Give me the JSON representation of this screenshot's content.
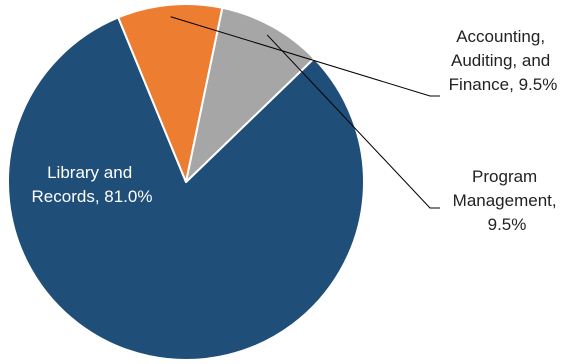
{
  "chart_data": {
    "type": "pie",
    "title": "",
    "slices": [
      {
        "category": "Library and Records",
        "value": 81.0,
        "label_lines": [
          "Library and",
          "Records, 81.0%"
        ],
        "color": "#1f4e79",
        "label_color": "#ffffff"
      },
      {
        "category": "Accounting, Auditing, and Finance",
        "value": 9.5,
        "label_lines": [
          "Accounting,",
          "Auditing, and",
          "Finance, 9.5%"
        ],
        "color": "#ed7d31",
        "label_color": "#222222"
      },
      {
        "category": "Program Management",
        "value": 9.5,
        "label_lines": [
          "Program",
          "Management,",
          "9.5%"
        ],
        "color": "#a6a6a6",
        "label_color": "#222222"
      }
    ],
    "legend": "none",
    "border_color": "#ffffff",
    "leader_line_color": "#000000"
  }
}
